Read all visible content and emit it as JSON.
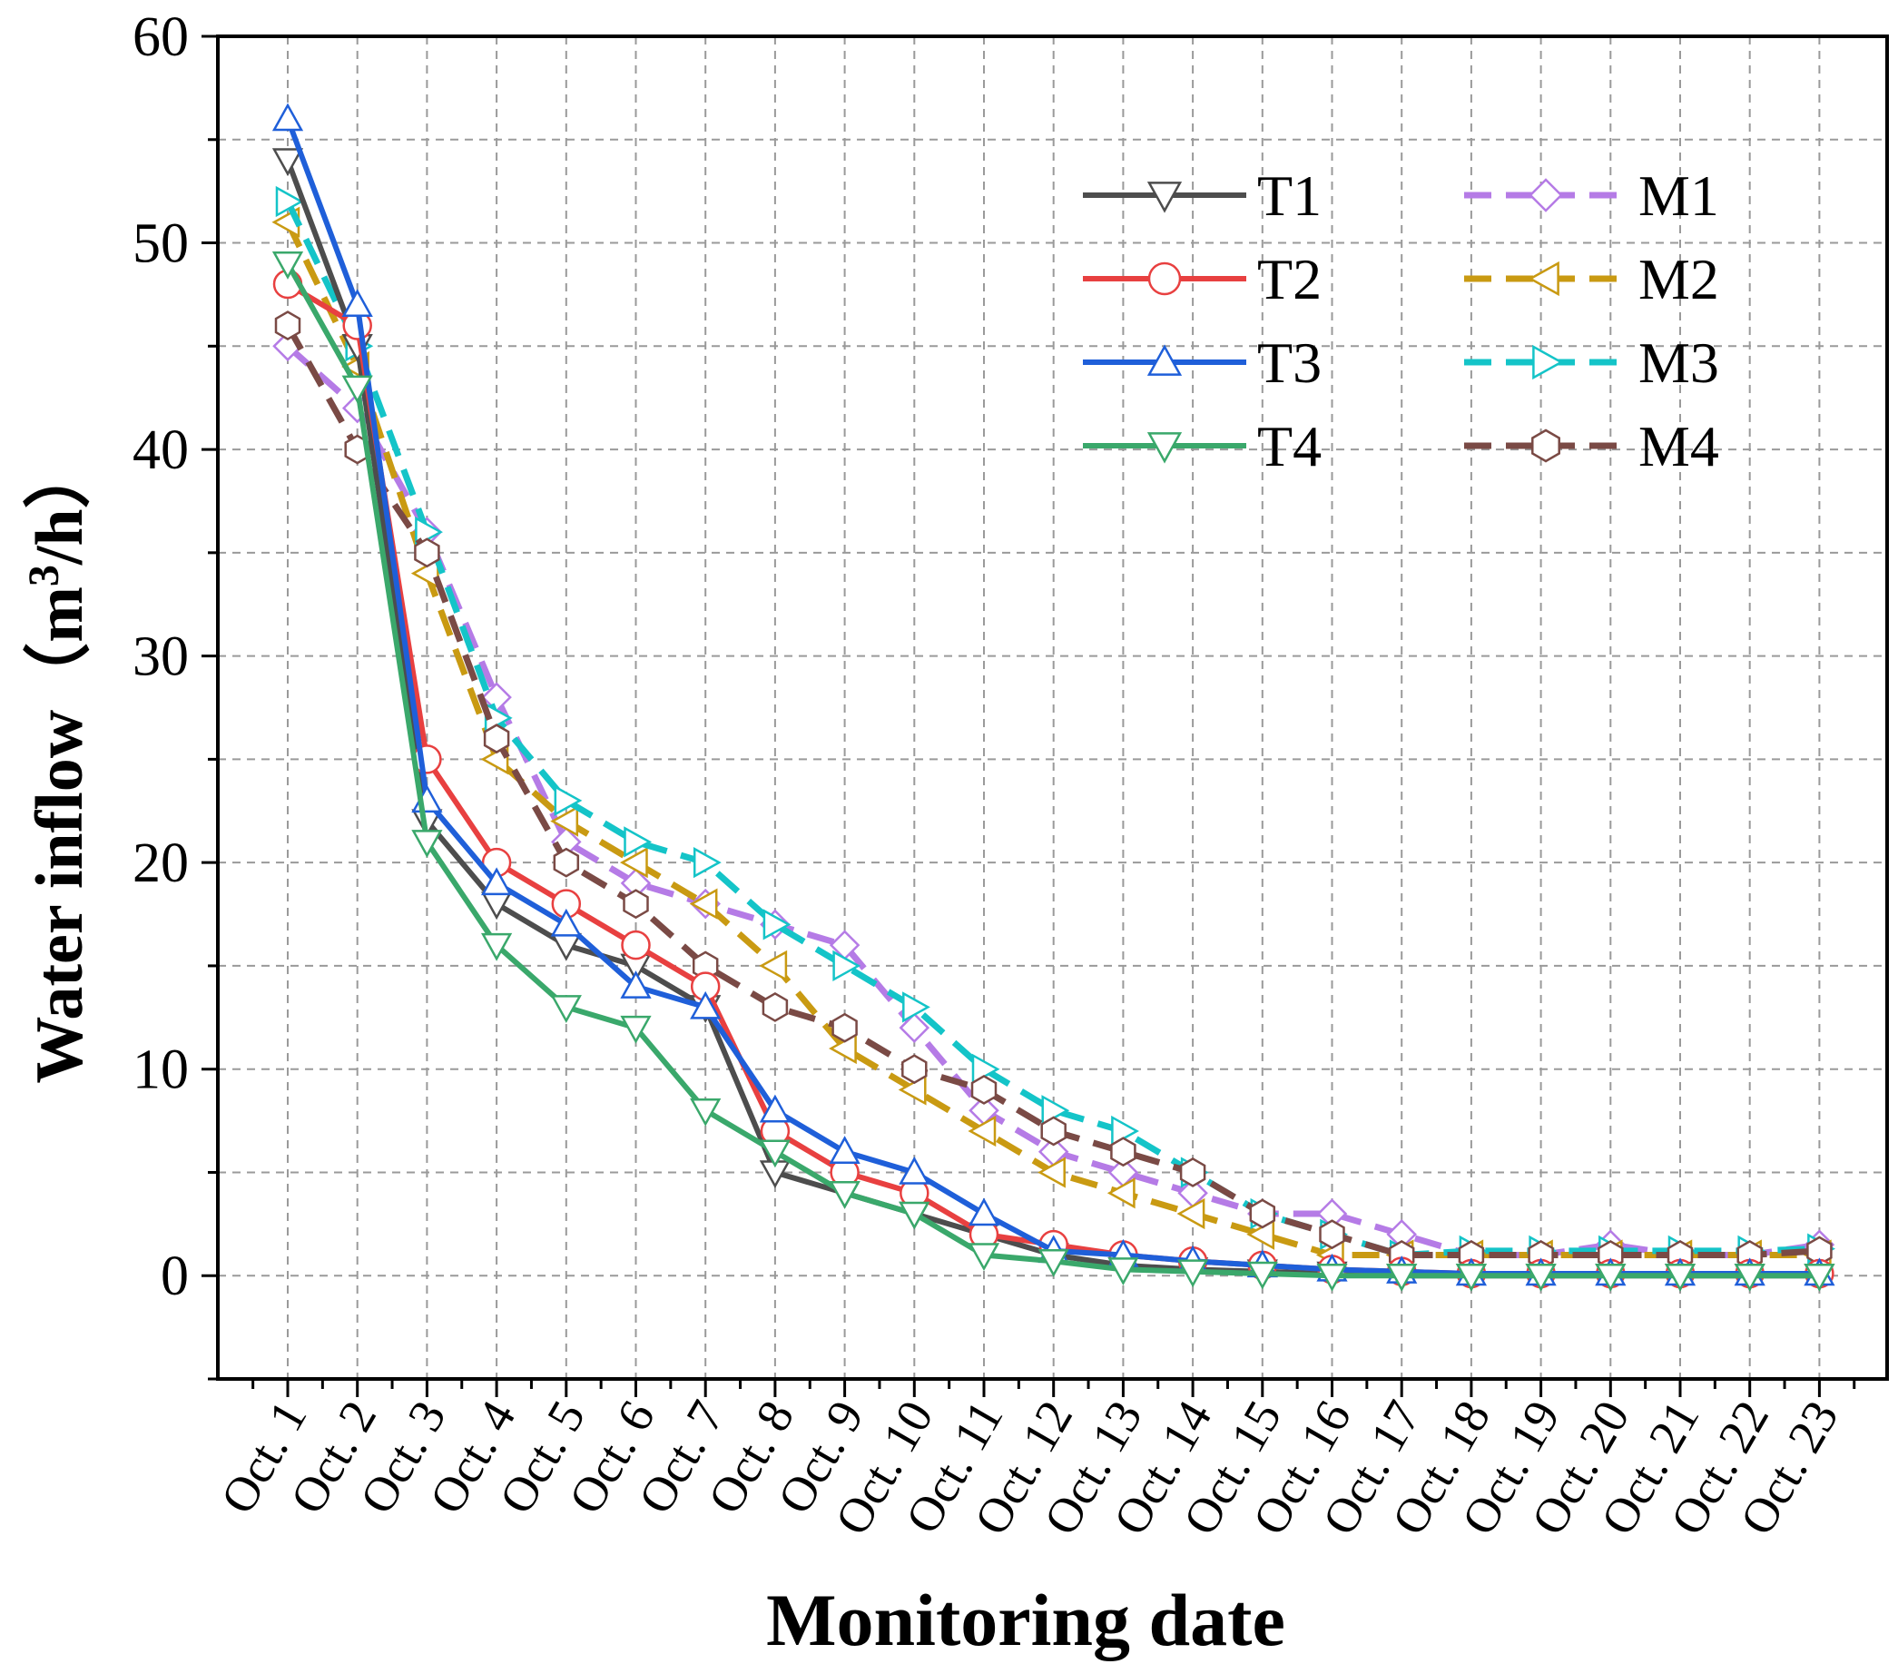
{
  "chart_data": {
    "type": "line",
    "title": "",
    "xlabel": "Monitoring date",
    "ylabel": "Water inflow",
    "ylabel_unit_prefix": "（m",
    "ylabel_unit_sup": "3",
    "ylabel_unit_suffix": "/h）",
    "ylim": [
      -5,
      60
    ],
    "yticks": [
      0,
      10,
      20,
      30,
      40,
      50,
      60
    ],
    "grid": true,
    "legend_position": "top-right",
    "categories": [
      "Oct. 1",
      "Oct. 2",
      "Oct. 3",
      "Oct. 4",
      "Oct. 5",
      "Oct. 6",
      "Oct. 7",
      "Oct. 8",
      "Oct. 9",
      "Oct. 10",
      "Oct. 11",
      "Oct. 12",
      "Oct. 13",
      "Oct. 14",
      "Oct. 15",
      "Oct. 16",
      "Oct. 17",
      "Oct. 18",
      "Oct. 19",
      "Oct. 20",
      "Oct. 21",
      "Oct. 22",
      "Oct. 23"
    ],
    "series": [
      {
        "name": "T1",
        "color": "#4d4d4d",
        "dashed": false,
        "marker": "triangle-down",
        "values": [
          54,
          45,
          22,
          18,
          16,
          15,
          13,
          5,
          4,
          3,
          2,
          1,
          0.5,
          0.3,
          0.2,
          0.1,
          0,
          0,
          0,
          0,
          0,
          0,
          0
        ]
      },
      {
        "name": "T2",
        "color": "#e84040",
        "dashed": false,
        "marker": "circle",
        "values": [
          48,
          46,
          25,
          20,
          18,
          16,
          14,
          7,
          5,
          4,
          2,
          1.5,
          1,
          0.7,
          0.5,
          0.3,
          0.2,
          0.1,
          0.1,
          0.1,
          0.1,
          0.1,
          0.1
        ]
      },
      {
        "name": "T3",
        "color": "#1f5fd9",
        "dashed": false,
        "marker": "triangle-up",
        "values": [
          56,
          47,
          23,
          19,
          17,
          14,
          13,
          8,
          6,
          5,
          3,
          1.2,
          1,
          0.7,
          0.5,
          0.3,
          0.2,
          0.1,
          0.1,
          0.1,
          0.1,
          0.1,
          0.1
        ]
      },
      {
        "name": "T4",
        "color": "#3aa86b",
        "dashed": false,
        "marker": "triangle-down",
        "values": [
          49,
          43,
          21,
          16,
          13,
          12,
          8,
          6,
          4,
          3,
          1,
          0.7,
          0.3,
          0.2,
          0.1,
          0,
          0,
          0,
          0,
          0,
          0,
          0,
          0
        ]
      },
      {
        "name": "M1",
        "color": "#b57be6",
        "dashed": true,
        "marker": "diamond",
        "values": [
          45,
          42,
          36,
          28,
          21,
          19,
          18,
          17,
          16,
          12,
          8,
          6,
          5,
          4,
          3,
          3,
          2,
          1,
          1,
          1.5,
          1,
          1,
          1.5
        ]
      },
      {
        "name": "M2",
        "color": "#c99a12",
        "dashed": true,
        "marker": "triangle-left",
        "values": [
          51,
          44,
          34,
          25,
          22,
          20,
          18,
          15,
          11,
          9,
          7,
          5,
          4,
          3,
          2,
          1,
          1,
          1,
          1,
          1,
          1,
          1,
          1
        ]
      },
      {
        "name": "M3",
        "color": "#14c4c8",
        "dashed": true,
        "marker": "triangle-right",
        "values": [
          52,
          45,
          36,
          27,
          23,
          21,
          20,
          17,
          15,
          13,
          10,
          8,
          7,
          5,
          3,
          2,
          1,
          1.2,
          1.2,
          1.2,
          1.2,
          1.2,
          1.3
        ]
      },
      {
        "name": "M4",
        "color": "#7a4a45",
        "dashed": true,
        "marker": "hexagon",
        "values": [
          46,
          40,
          35,
          26,
          20,
          18,
          15,
          13,
          12,
          10,
          9,
          7,
          6,
          5,
          3,
          2,
          1,
          1,
          1,
          1,
          1,
          1,
          1.2
        ]
      }
    ]
  }
}
